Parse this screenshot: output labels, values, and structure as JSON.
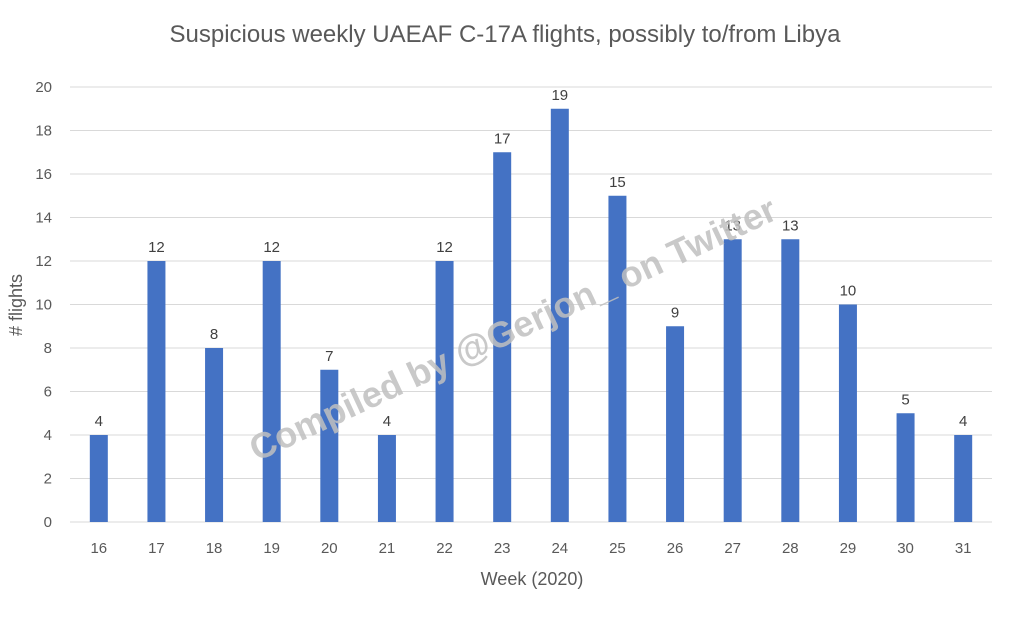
{
  "chart_data": {
    "type": "bar",
    "title": "Suspicious weekly UAEAF C-17A flights, possibly to/from Libya",
    "xlabel": "Week (2020)",
    "ylabel": "# flights",
    "categories": [
      "16",
      "17",
      "18",
      "19",
      "20",
      "21",
      "22",
      "23",
      "24",
      "25",
      "26",
      "27",
      "28",
      "29",
      "30",
      "31"
    ],
    "values": [
      4,
      12,
      8,
      12,
      7,
      4,
      12,
      17,
      19,
      15,
      9,
      13,
      13,
      10,
      5,
      4
    ],
    "ylim": [
      0,
      20
    ],
    "yticks": [
      0,
      2,
      4,
      6,
      8,
      10,
      12,
      14,
      16,
      18,
      20
    ],
    "grid": true,
    "legend": "none",
    "bar_color": "#4472C4",
    "gridline_color": "#D9D9D9",
    "watermark": "Compiled by @Gerjon_ on Twitter"
  }
}
